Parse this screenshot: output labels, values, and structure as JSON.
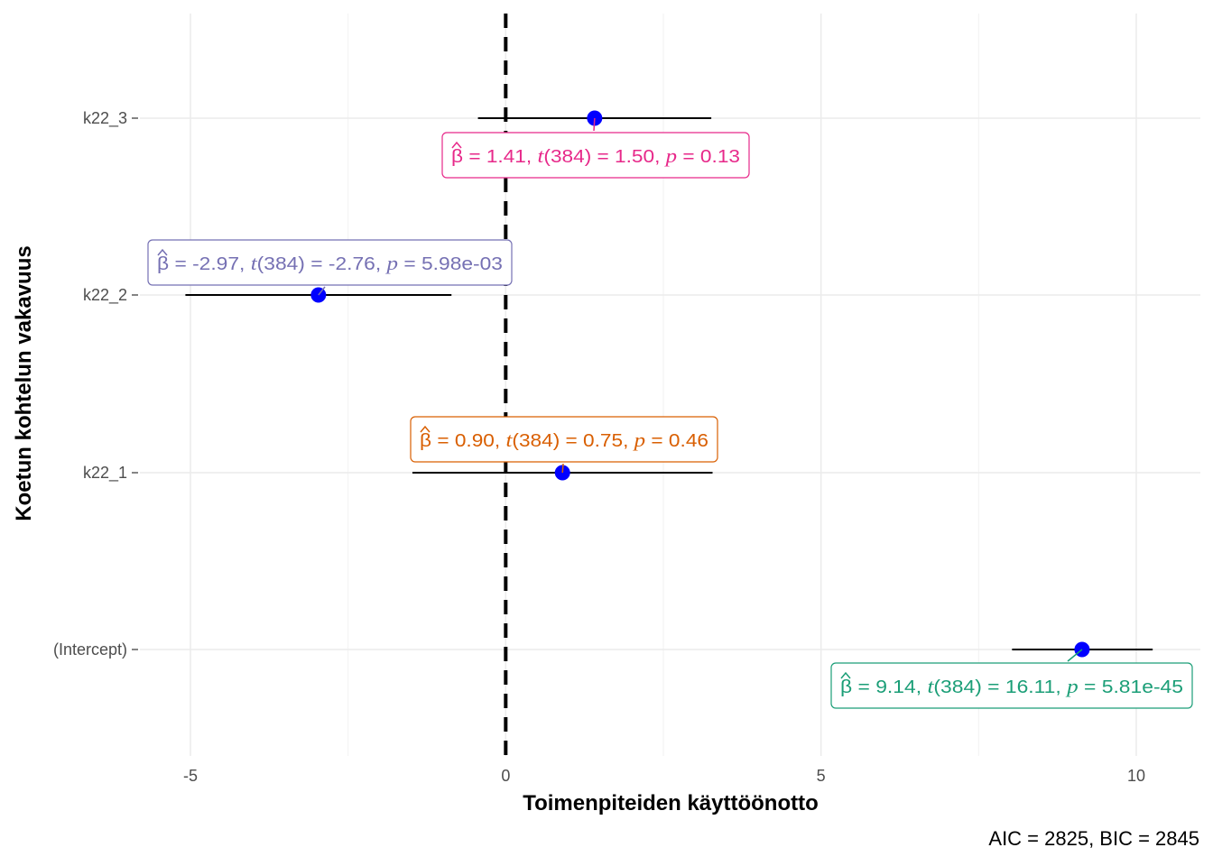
{
  "chart_data": {
    "type": "scatter",
    "subtype": "coefficient-plot",
    "title": "",
    "xlabel": "Toimenpiteiden käyttöönotto",
    "ylabel": "Koetun kohtelun vakavuus",
    "xlim": [
      -6.0,
      10.7
    ],
    "x_ticks": [
      -5,
      0,
      5,
      10
    ],
    "x_tick_labels": [
      "-5",
      "0",
      "5",
      "10"
    ],
    "categories": [
      "(Intercept)",
      "k22_1",
      "k22_2",
      "k22_3"
    ],
    "reference_line_x": 0,
    "grid": true,
    "point_color": "#0000ff",
    "estimates": [
      {
        "term": "(Intercept)",
        "estimate": 9.14,
        "conf_low": 8.03,
        "conf_high": 10.26,
        "color": "#1b9e77",
        "label": {
          "beta": "9.14",
          "df": "384",
          "t": "16.11",
          "p": "5.81e-45"
        }
      },
      {
        "term": "k22_1",
        "estimate": 0.9,
        "conf_low": -1.48,
        "conf_high": 3.28,
        "color": "#d95f02",
        "label": {
          "beta": "0.90",
          "df": "384",
          "t": "0.75",
          "p": "0.46"
        }
      },
      {
        "term": "k22_2",
        "estimate": -2.97,
        "conf_low": -5.08,
        "conf_high": -0.86,
        "color": "#7570b3",
        "label": {
          "beta": "-2.97",
          "df": "384",
          "t": "-2.76",
          "p": "5.98e-03"
        }
      },
      {
        "term": "k22_3",
        "estimate": 1.41,
        "conf_low": -0.44,
        "conf_high": 3.26,
        "color": "#e7298a",
        "label": {
          "beta": "1.41",
          "df": "384",
          "t": "1.50",
          "p": "0.13"
        }
      }
    ],
    "caption": {
      "aic": "2825",
      "bic": "2845"
    }
  }
}
